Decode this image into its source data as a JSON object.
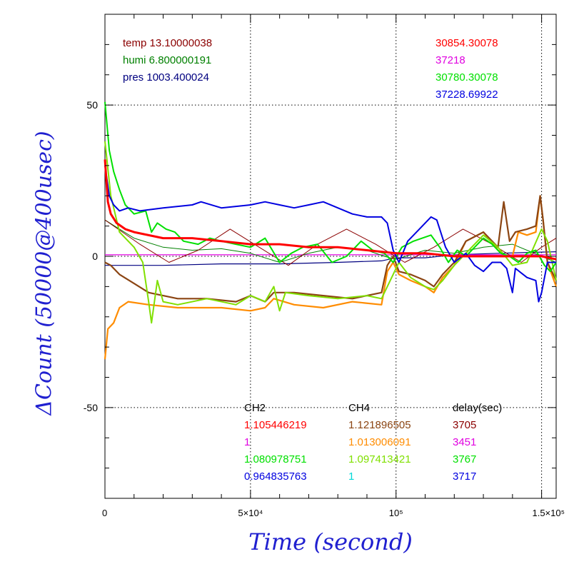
{
  "colors": {
    "temp": "#8b0000",
    "humi": "#008000",
    "pres": "#000080",
    "red": "#ff0000",
    "magenta": "#e000e0",
    "green": "#00e000",
    "blue": "#0000e0",
    "brown": "#8b4513",
    "orange": "#ff8c00",
    "lime": "#80e000",
    "cyan": "#00d8d8",
    "axis_label": "#2020d0"
  },
  "chart_data": {
    "type": "line",
    "xlabel": "Time (second)",
    "ylabel": "ΔCount (50000@400usec)",
    "xlim": [
      0,
      155000
    ],
    "ylim": [
      -80,
      80
    ],
    "x_ticks": [
      {
        "v": 0,
        "label": "0"
      },
      {
        "v": 50000,
        "label": "5×10⁴"
      },
      {
        "v": 100000,
        "label": "10⁵"
      },
      {
        "v": 150000,
        "label": "1.5×10⁵"
      }
    ],
    "y_ticks": [
      {
        "v": 50,
        "label": "50"
      },
      {
        "v": 0,
        "label": "0"
      },
      {
        "v": -50,
        "label": "-50"
      }
    ],
    "grid": true,
    "series": [
      {
        "color_key": "pres",
        "width": 1.2,
        "x": [
          0,
          20000,
          40000,
          60000,
          80000,
          95000,
          100000,
          110000,
          120000,
          135000,
          155000
        ],
        "y": [
          -3,
          -3,
          -2.5,
          -2.5,
          -2,
          -1.5,
          -0.5,
          -0.5,
          0.5,
          1,
          1.5
        ]
      },
      {
        "color_key": "magenta",
        "width": 1.2,
        "x": [
          0,
          155000
        ],
        "y": [
          0.5,
          0.5
        ]
      },
      {
        "color_key": "humi",
        "width": 1,
        "x": [
          0,
          5000,
          10000,
          20000,
          30000,
          40000,
          50000,
          60000,
          70000,
          80000,
          90000,
          96000,
          100000,
          110000,
          120000,
          130000,
          140000,
          150000,
          155000
        ],
        "y": [
          12,
          9,
          6,
          3,
          2,
          2.5,
          1,
          -2,
          1,
          3,
          2,
          0,
          -1,
          2,
          1,
          3,
          4,
          0,
          -2
        ]
      },
      {
        "color_key": "temp",
        "width": 1,
        "x": [
          0,
          6000,
          12000,
          22000,
          32000,
          43000,
          53000,
          63000,
          73000,
          83000,
          93000,
          103000,
          113000,
          123000,
          133000,
          143000,
          150000,
          155000
        ],
        "y": [
          12,
          8,
          4,
          -2,
          2,
          9,
          3,
          -3,
          4,
          9,
          4,
          -2,
          3,
          9,
          4,
          -2,
          3,
          6
        ]
      },
      {
        "color_key": "orange",
        "width": 2.2,
        "x": [
          0,
          1000,
          3000,
          5000,
          8000,
          15000,
          25000,
          40000,
          50000,
          55000,
          58000,
          65000,
          75000,
          85000,
          95000,
          97000,
          99000,
          101000,
          105000,
          110000,
          113000,
          116000,
          120000,
          124000,
          130000,
          135000,
          138000,
          140000,
          142000,
          145000,
          148000,
          149500,
          150500,
          152000,
          155000
        ],
        "y": [
          -34,
          -24,
          -22,
          -17,
          -15,
          -16,
          -17,
          -17,
          -18,
          -17,
          -14,
          -16,
          -17,
          -15,
          -16,
          -5,
          -2,
          -6,
          -8,
          -10,
          -12,
          -7,
          -3,
          5,
          8,
          2,
          0,
          0,
          8,
          7,
          8,
          20,
          12,
          -2,
          -10
        ]
      },
      {
        "color_key": "brown",
        "width": 2.2,
        "x": [
          0,
          2000,
          5000,
          10000,
          15000,
          25000,
          35000,
          45000,
          50000,
          55000,
          58000,
          65000,
          75000,
          85000,
          95000,
          97000,
          99000,
          101000,
          105000,
          110000,
          113000,
          116000,
          120000,
          124000,
          130000,
          135000,
          137000,
          139000,
          141000,
          145000,
          148000,
          149500,
          150500,
          152000,
          155000
        ],
        "y": [
          -2,
          -3,
          -6,
          -9,
          -12,
          -14,
          -14,
          -15,
          -13,
          -15,
          -12,
          -12,
          -13,
          -14,
          -12,
          -3,
          0,
          -5,
          -6,
          -8,
          -10,
          -6,
          -2,
          5,
          8,
          3,
          18,
          5,
          8,
          9,
          10,
          20,
          12,
          -2,
          -8
        ]
      },
      {
        "color_key": "lime",
        "width": 2,
        "x": [
          0,
          2000,
          5000,
          10000,
          13000,
          15000,
          16000,
          18000,
          20000,
          25000,
          35000,
          45000,
          50000,
          55000,
          58000,
          60000,
          62000,
          70000,
          80000,
          90000,
          95000,
          98000,
          101000,
          105000,
          110000,
          113000,
          116000,
          120000,
          125000,
          130000,
          135000,
          140000,
          145000,
          150000,
          152000,
          155000
        ],
        "y": [
          38,
          20,
          8,
          3,
          -2,
          -15,
          -22,
          -8,
          -15,
          -16,
          -14,
          -16,
          -13,
          -15,
          -10,
          -18,
          -12,
          -13,
          -14,
          -13,
          -14,
          -8,
          -2,
          -7,
          -10,
          -11,
          -8,
          -3,
          2,
          7,
          3,
          -3,
          -2,
          9,
          5,
          -8
        ]
      },
      {
        "color_key": "green",
        "width": 2,
        "x": [
          0,
          1500,
          3000,
          5000,
          7000,
          10000,
          14000,
          16000,
          18000,
          21000,
          24000,
          27000,
          32000,
          36000,
          40000,
          45000,
          50000,
          55000,
          60000,
          64000,
          68000,
          73000,
          78000,
          83000,
          88000,
          92000,
          96000,
          99000,
          102000,
          106000,
          109000,
          112000,
          115000,
          118000,
          121000,
          124000,
          127000,
          130000,
          133000,
          136000,
          139000,
          142000,
          145000,
          148000,
          151000,
          153000,
          155000
        ],
        "y": [
          51,
          35,
          28,
          22,
          17,
          14,
          15,
          8,
          11,
          9,
          8,
          5,
          4,
          6,
          5,
          4,
          3,
          6,
          -2,
          1,
          3,
          4,
          -2,
          0,
          5,
          2,
          1,
          -2,
          3,
          5,
          6,
          7,
          3,
          -2,
          2,
          0,
          3,
          6,
          4,
          1,
          0,
          -2,
          1,
          2,
          -3,
          -5,
          -2
        ]
      },
      {
        "color_key": "blue",
        "width": 2,
        "x": [
          0,
          1500,
          3000,
          5000,
          8000,
          12000,
          20000,
          30000,
          33000,
          40000,
          50000,
          55000,
          60000,
          65000,
          70000,
          75000,
          80000,
          85000,
          90000,
          95000,
          97000,
          99000,
          101000,
          104000,
          108000,
          112000,
          114000,
          117000,
          120000,
          124000,
          127000,
          130000,
          133000,
          136000,
          138000,
          140000,
          141000,
          145000,
          148000,
          149000,
          150000,
          152000,
          155000
        ],
        "y": [
          30,
          20,
          17,
          15,
          16,
          15,
          16,
          17,
          18,
          16,
          17,
          18,
          17,
          16,
          17,
          18,
          16,
          14,
          13,
          13,
          11,
          2,
          -2,
          5,
          9,
          13,
          12,
          3,
          -2,
          1,
          -3,
          -5,
          -2,
          -2,
          -4,
          -12,
          -4,
          -7,
          -8,
          -15,
          -12,
          -2,
          -2
        ]
      },
      {
        "color_key": "red",
        "width": 3,
        "x": [
          0,
          1000,
          2000,
          4000,
          7000,
          10000,
          20000,
          30000,
          40000,
          50000,
          60000,
          70000,
          80000,
          90000,
          100000,
          110000,
          120000,
          130000,
          140000,
          150000,
          155000
        ],
        "y": [
          32,
          18,
          14,
          11,
          9,
          8,
          6,
          6,
          5,
          4,
          4,
          3,
          3,
          2,
          1,
          1,
          0,
          0,
          0,
          0,
          -1
        ]
      }
    ]
  },
  "top_left_info": [
    "temp 13.10000038",
    "humi 6.800000191",
    "pres 1003.400024"
  ],
  "top_right_info": [
    "30854.30078",
    "37218",
    "30780.30078",
    "37228.69922"
  ],
  "bottom_table": {
    "headers": [
      "CH2",
      "CH4",
      "delay(sec)"
    ],
    "ch2": [
      "1.105446219",
      "1",
      "1.080978751",
      "0.964835763"
    ],
    "ch4": [
      "1.121896505",
      "1.013006091",
      "1.097413421",
      "1"
    ],
    "delay": [
      "3705",
      "3451",
      "3767",
      "3717"
    ]
  }
}
